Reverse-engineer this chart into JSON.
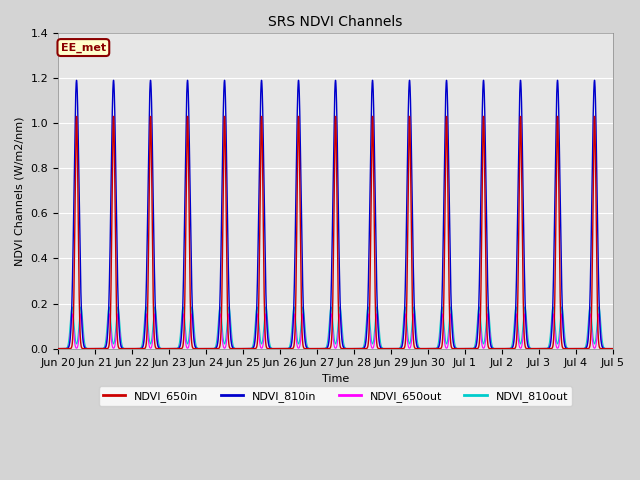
{
  "title": "SRS NDVI Channels",
  "xlabel": "Time",
  "ylabel": "NDVI Channels (W/m2/nm)",
  "ylim": [
    0.0,
    1.4
  ],
  "xlim_days": 15,
  "fig_bg_color": "#d4d4d4",
  "plot_bg_color": "#e6e6e6",
  "annotation_text": "EE_met",
  "annotation_bg": "#ffffcc",
  "annotation_border": "#8B0000",
  "series": {
    "NDVI_650in": {
      "color": "#cc0000",
      "lw": 1.0,
      "peak": 1.03,
      "sigma": 1.0
    },
    "NDVI_810in": {
      "color": "#0000cc",
      "lw": 1.0,
      "peak": 1.19,
      "sigma": 1.6
    },
    "NDVI_650out": {
      "color": "#ff00ff",
      "lw": 0.8,
      "peak": 0.155,
      "sigma": 0.9
    },
    "NDVI_810out": {
      "color": "#00cccc",
      "lw": 0.8,
      "peak": 0.185,
      "sigma": 1.2
    }
  },
  "legend": [
    {
      "label": "NDVI_650in",
      "color": "#cc0000"
    },
    {
      "label": "NDVI_810in",
      "color": "#0000cc"
    },
    {
      "label": "NDVI_650out",
      "color": "#ff00ff"
    },
    {
      "label": "NDVI_810out",
      "color": "#00cccc"
    }
  ],
  "xtick_labels": [
    "Jun 20",
    "Jun 21",
    "Jun 22",
    "Jun 23",
    "Jun 24",
    "Jun 25",
    "Jun 26",
    "Jun 27",
    "Jun 28",
    "Jun 29",
    "Jun 30",
    "Jul 1",
    "Jul 2",
    "Jul 3",
    "Jul 4",
    "Jul 5"
  ],
  "yticks": [
    0.0,
    0.2,
    0.4,
    0.6,
    0.8,
    1.0,
    1.2,
    1.4
  ]
}
